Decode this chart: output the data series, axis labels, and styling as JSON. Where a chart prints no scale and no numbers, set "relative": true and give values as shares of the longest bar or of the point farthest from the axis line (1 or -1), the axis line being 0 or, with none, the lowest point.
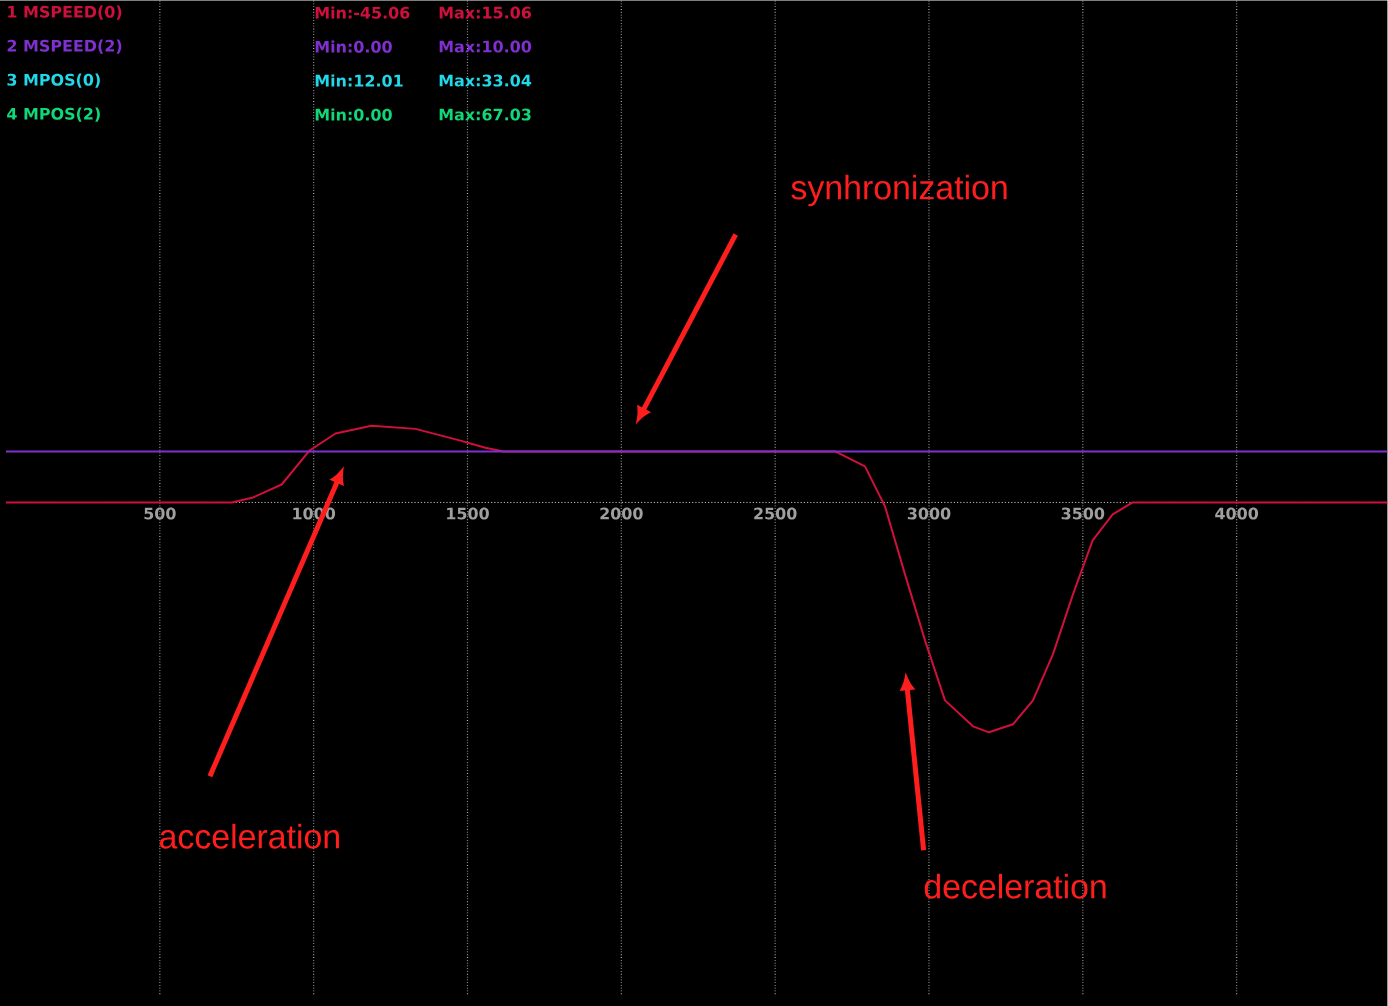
{
  "chart_data": {
    "type": "line",
    "relative": true,
    "x": [
      0,
      734,
      800,
      896,
      987,
      1071,
      1188,
      1331,
      1474,
      1558,
      1617,
      2695,
      2792,
      2857,
      2922,
      2987,
      3052,
      3143,
      3195,
      3273,
      3338,
      3403,
      3468,
      3532,
      3597,
      3662,
      4490
    ],
    "xlim": [
      0,
      4490
    ],
    "xticks": [
      500,
      1000,
      1500,
      2000,
      2500,
      3000,
      3500,
      4000
    ],
    "grid": true,
    "legend": "top left",
    "series": [
      {
        "name": "1 MSPEED(0)",
        "color": "#d0103c",
        "values": [
          0,
          0,
          0.02,
          0.078,
          0.226,
          0.3,
          0.334,
          0.32,
          0.27,
          0.238,
          0.222,
          0.222,
          0.157,
          -0.017,
          -0.313,
          -0.6,
          -0.861,
          -0.974,
          -1,
          -0.965,
          -0.861,
          -0.66,
          -0.4,
          -0.165,
          -0.052,
          0,
          0
        ]
      },
      {
        "name": "2 MSPEED(2)",
        "color": "#8030d0",
        "values": [
          0.222,
          0.222,
          0.222,
          0.222,
          0.222,
          0.222,
          0.222,
          0.222,
          0.222,
          0.222,
          0.222,
          0.222,
          0.222,
          0.222,
          0.222,
          0.222,
          0.222,
          0.222,
          0.222,
          0.222,
          0.222,
          0.222,
          0.222,
          0.222,
          0.222,
          0.222,
          0.222
        ]
      },
      {
        "name": "3 MPOS(0)",
        "color": "#20d8e8",
        "values": [
          null,
          null,
          null,
          null,
          null,
          null,
          null,
          null,
          null,
          null,
          null,
          null,
          null,
          null,
          null,
          null,
          null,
          null,
          null,
          null,
          null,
          null,
          null,
          null,
          null,
          null,
          null
        ]
      },
      {
        "name": "4 MPOS(2)",
        "color": "#10d878",
        "values": [
          null,
          null,
          null,
          null,
          null,
          null,
          null,
          null,
          null,
          null,
          null,
          null,
          null,
          null,
          null,
          null,
          null,
          null,
          null,
          null,
          null,
          null,
          null,
          null,
          null,
          null,
          null
        ]
      }
    ],
    "annotations": [
      "synhronization",
      "acceleration",
      "deceleration",
      "Min:-45.06",
      "Max:15.06",
      "Min:0.00",
      "Max:10.00",
      "Min:12.01",
      "Max:33.04",
      "Min:0.00",
      "Max:67.03"
    ]
  }
}
